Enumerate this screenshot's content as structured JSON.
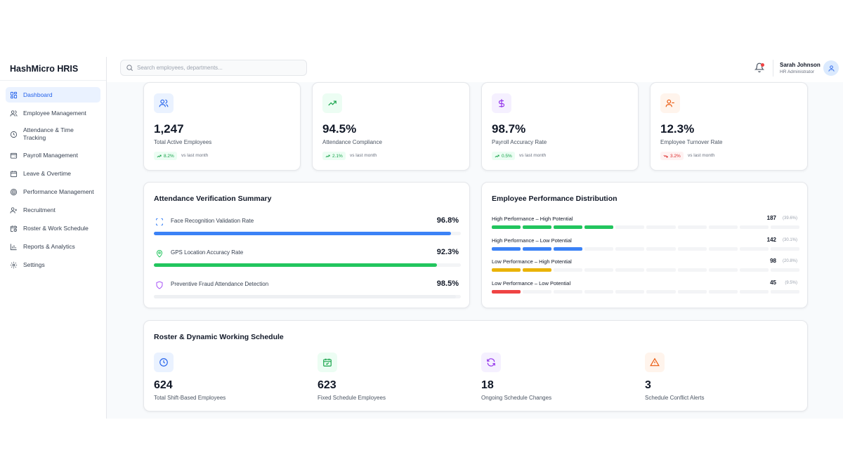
{
  "app": {
    "brand": "HashMicro HRIS"
  },
  "search": {
    "placeholder": "Search employees, departments..."
  },
  "user": {
    "name": "Sarah Johnson",
    "role": "HR Administrator"
  },
  "sidebar": {
    "items": [
      {
        "label": "Dashboard",
        "icon": "grid-icon",
        "active": true
      },
      {
        "label": "Employee Management",
        "icon": "users-icon"
      },
      {
        "label": "Attendance & Time Tracking",
        "icon": "clock-icon"
      },
      {
        "label": "Payroll Management",
        "icon": "wallet-icon"
      },
      {
        "label": "Leave & Overtime",
        "icon": "calendar-icon"
      },
      {
        "label": "Performance Management",
        "icon": "target-icon"
      },
      {
        "label": "Recruitment",
        "icon": "user-plus-icon"
      },
      {
        "label": "Roster & Work Schedule",
        "icon": "calendar-clock-icon"
      },
      {
        "label": "Reports & Analytics",
        "icon": "bar-chart-icon"
      },
      {
        "label": "Settings",
        "icon": "gear-icon"
      }
    ]
  },
  "kpis": [
    {
      "value": "1,247",
      "label": "Total Active Employees",
      "delta": "8.2%",
      "trend": "up",
      "compare": "vs last month",
      "icon": "users-icon",
      "accent": "#2563eb",
      "bg": "#eaf2ff"
    },
    {
      "value": "94.5%",
      "label": "Attendance Compliance",
      "delta": "2.1%",
      "trend": "up",
      "compare": "vs last month",
      "icon": "trending-up-icon",
      "accent": "#16a34a",
      "bg": "#ecfdf3"
    },
    {
      "value": "98.7%",
      "label": "Payroll Accuracy Rate",
      "delta": "0.5%",
      "trend": "up",
      "compare": "vs last month",
      "icon": "dollar-icon",
      "accent": "#9333ea",
      "bg": "#f5f0ff"
    },
    {
      "value": "12.3%",
      "label": "Employee Turnover Rate",
      "delta": "3.2%",
      "trend": "down",
      "compare": "vs last month",
      "icon": "user-minus-icon",
      "accent": "#ea580c",
      "bg": "#fff4ec"
    }
  ],
  "attendance": {
    "title": "Attendance Verification Summary",
    "rows": [
      {
        "label": "Face Recognition Validation Rate",
        "value": "96.8%",
        "fraction": 0.968,
        "color": "#3b82f6",
        "icon": "scan-face-icon"
      },
      {
        "label": "GPS Location Accuracy Rate",
        "value": "92.3%",
        "fraction": 0.923,
        "color": "#22c55e",
        "icon": "map-pin-icon"
      },
      {
        "label": "Preventive Fraud Attendance Detection",
        "value": "98.5%",
        "fraction": 0.985,
        "color": "#eef0f3",
        "icon": "shield-icon"
      }
    ]
  },
  "performance": {
    "title": "Employee Performance Distribution",
    "rows": [
      {
        "label": "High Performance – High Potential",
        "count": "187",
        "pct": "(39.6%)",
        "filled": 4,
        "color": "#22c55e"
      },
      {
        "label": "High Performance – Low Potential",
        "count": "142",
        "pct": "(30.1%)",
        "filled": 3,
        "color": "#3b82f6"
      },
      {
        "label": "Low Performance – High Potential",
        "count": "98",
        "pct": "(20.8%)",
        "filled": 2,
        "color": "#eab308"
      },
      {
        "label": "Low Performance – Low Potential",
        "count": "45",
        "pct": "(9.5%)",
        "filled": 1,
        "color": "#ef4444"
      }
    ]
  },
  "roster": {
    "title": "Roster & Dynamic Working Schedule",
    "stats": [
      {
        "value": "624",
        "label": "Total Shift-Based Employees",
        "icon": "clock-icon",
        "accent": "#2563eb",
        "bg": "#eaf2ff"
      },
      {
        "value": "623",
        "label": "Fixed Schedule Employees",
        "icon": "calendar-check-icon",
        "accent": "#16a34a",
        "bg": "#ecfdf3"
      },
      {
        "value": "18",
        "label": "Ongoing Schedule Changes",
        "icon": "refresh-icon",
        "accent": "#9333ea",
        "bg": "#f5f0ff"
      },
      {
        "value": "3",
        "label": "Schedule Conflict Alerts",
        "icon": "alert-triangle-icon",
        "accent": "#ea580c",
        "bg": "#fff4ec"
      }
    ]
  }
}
